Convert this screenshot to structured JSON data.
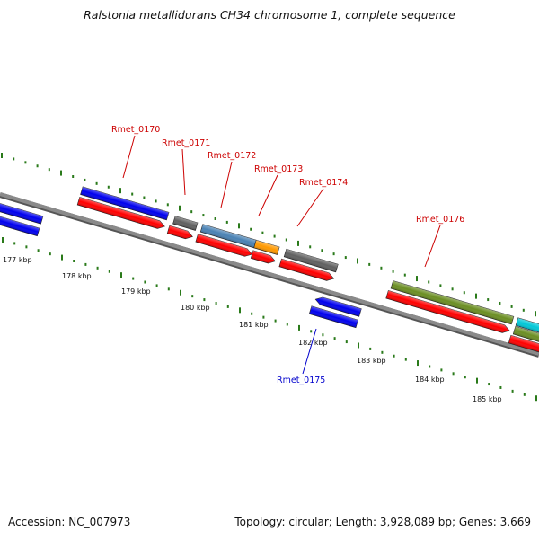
{
  "title": "Ralstonia metallidurans CH34 chromosome 1, complete sequence",
  "footer": {
    "accession": "Accession: NC_007973",
    "summary": "Topology: circular; Length: 3,928,089 bp; Genes: 3,669"
  },
  "colors": {
    "backbone": "#8a8a8a",
    "tick": "#2a7a1a",
    "forward_label": "#cc0000",
    "reverse_label": "#0000cc",
    "cds": "#ff0000",
    "blue": "#0000ee",
    "gray": "#606060",
    "steelblue": "#4a82b4",
    "orange": "#ff9900",
    "olive": "#6b8e23",
    "cyan": "#00c8d8"
  },
  "scale": {
    "kbp_labels": [
      "177 kbp",
      "178 kbp",
      "179 kbp",
      "180 kbp",
      "181 kbp",
      "182 kbp",
      "183 kbp",
      "184 kbp",
      "185 kbp"
    ]
  },
  "gene_labels": [
    {
      "text": "Rmet_0170",
      "strand": "forward"
    },
    {
      "text": "Rmet_0171",
      "strand": "forward"
    },
    {
      "text": "Rmet_0172",
      "strand": "forward"
    },
    {
      "text": "Rmet_0173",
      "strand": "forward"
    },
    {
      "text": "Rmet_0174",
      "strand": "forward"
    },
    {
      "text": "Rmet_0176",
      "strand": "forward"
    },
    {
      "text": "Rmet_0175",
      "strand": "reverse"
    }
  ]
}
